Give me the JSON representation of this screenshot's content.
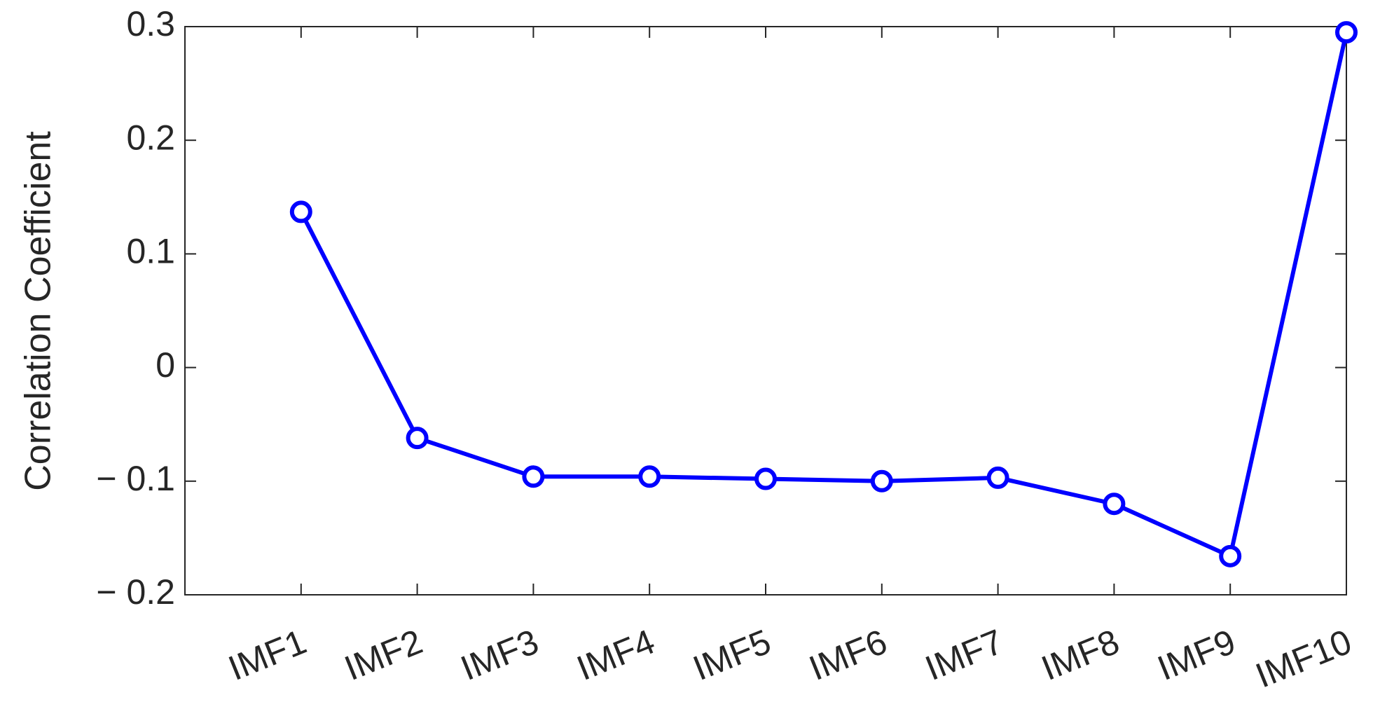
{
  "chart_data": {
    "type": "line",
    "y_label": "Correlation Coefficient",
    "categories": [
      "IMF1",
      "IMF2",
      "IMF3",
      "IMF4",
      "IMF5",
      "IMF6",
      "IMF7",
      "IMF8",
      "IMF9",
      "IMF10"
    ],
    "values": [
      0.137,
      -0.062,
      -0.096,
      -0.096,
      -0.098,
      -0.1,
      -0.097,
      -0.12,
      -0.166,
      0.295
    ],
    "color": "#0000ff",
    "ylim": [
      -0.2,
      0.3
    ],
    "yticks": [
      {
        "value": -0.2,
        "label": "− 0.2"
      },
      {
        "value": -0.1,
        "label": "− 0.1"
      },
      0,
      0.1,
      0.2,
      0.3
    ],
    "grid": false
  }
}
